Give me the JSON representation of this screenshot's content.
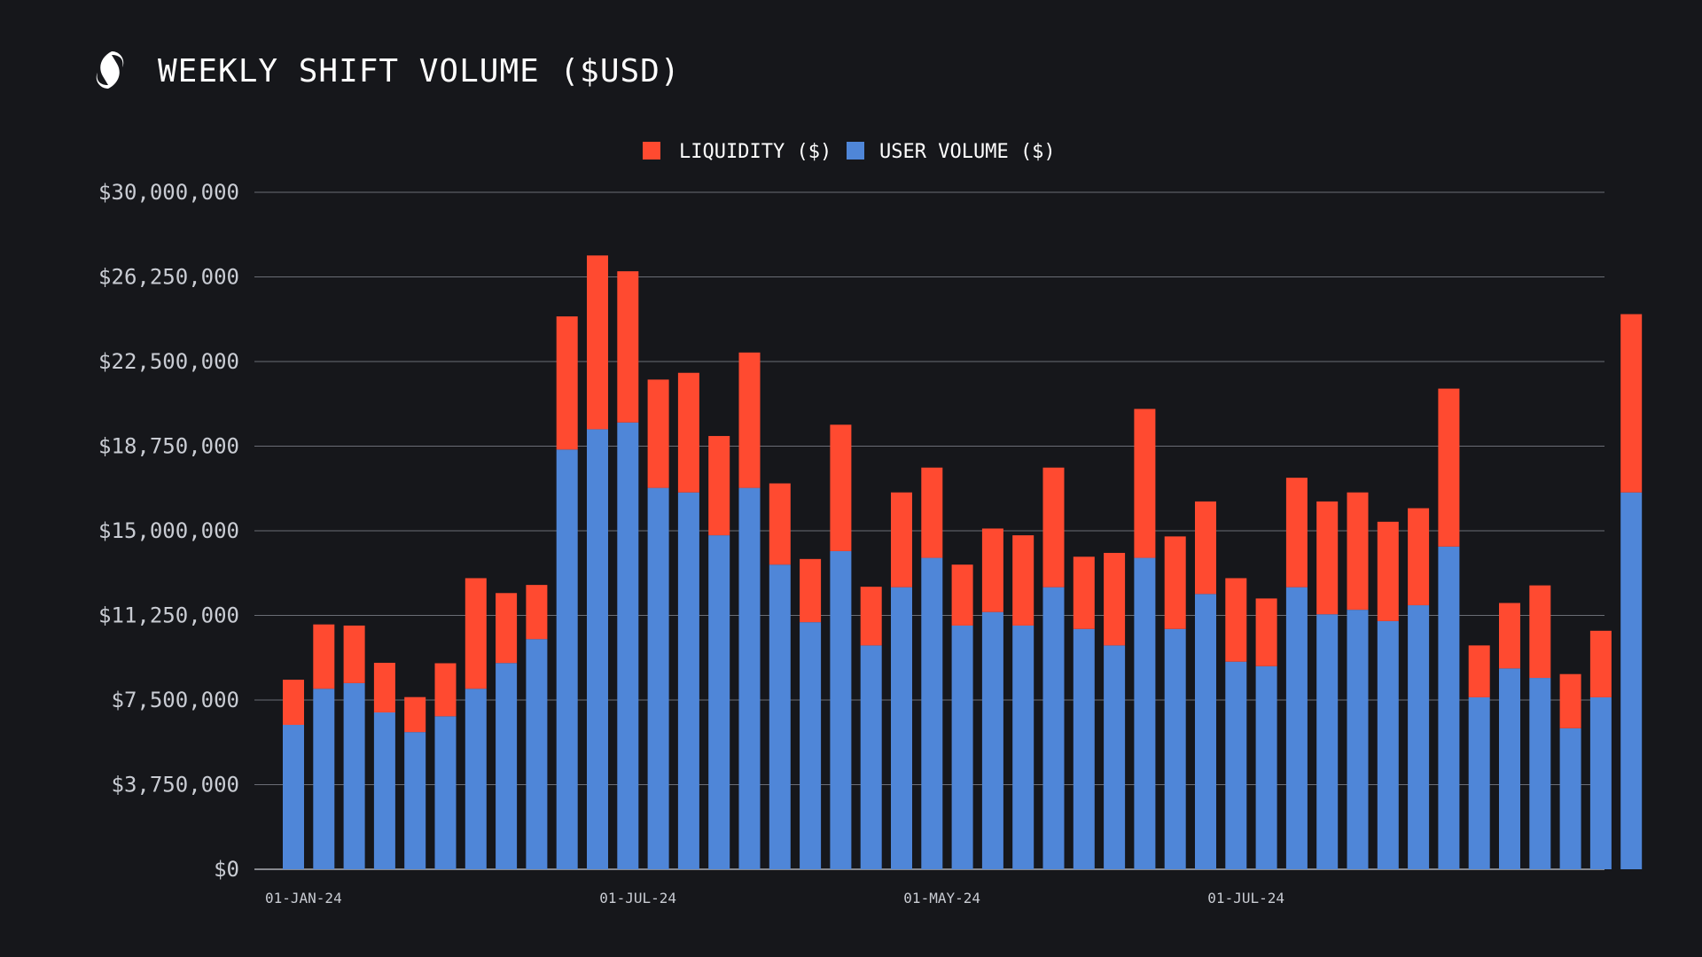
{
  "header": {
    "logo_icon": "shapeshift-fox-icon",
    "title": "WEEKLY SHIFT VOLUME ($USD)"
  },
  "colors": {
    "background": "#16171b",
    "liquidity": "#ff4a30",
    "user_volume": "#4f86d8",
    "grid": "#6a6d75",
    "text": "#ffffff",
    "tick_text": "#c9ccd3"
  },
  "chart_data": {
    "type": "bar",
    "stacked": true,
    "title": "WEEKLY SHIFT VOLUME ($USD)",
    "xlabel": "",
    "ylabel": "",
    "ylim": [
      0,
      30000000
    ],
    "grid": true,
    "legend_position": "top-center",
    "y_ticks": [
      "$0",
      "$3,750,000",
      "$7,500,000",
      "$11,250,000",
      "$15,000,000",
      "$18,750,000",
      "$22,500,000",
      "$26,250,000",
      "$30,000,000"
    ],
    "y_tick_values": [
      0,
      3750000,
      7500000,
      11250000,
      15000000,
      18750000,
      22500000,
      26250000,
      30000000
    ],
    "x_tick_labels": [
      {
        "label": "01-JAN-24",
        "index": 0
      },
      {
        "label": "01-JUL-24",
        "index": 11
      },
      {
        "label": "01-MAY-24",
        "index": 21
      },
      {
        "label": "01-JUL-24",
        "index": 31
      }
    ],
    "series": [
      {
        "name": "USER VOLUME ($)",
        "color": "#4f86d8",
        "values": [
          6400000,
          8000000,
          8250000,
          6950000,
          6080000,
          6780000,
          8000000,
          9140000,
          10200000,
          18600000,
          19500000,
          19800000,
          16900000,
          16700000,
          14800000,
          16900000,
          13500000,
          10950000,
          14100000,
          9920000,
          12500000,
          13800000,
          10800000,
          11400000,
          10800000,
          12500000,
          10650000,
          9920000,
          13800000,
          10650000,
          12200000,
          9200000,
          9000000,
          12500000,
          11300000,
          11500000,
          11000000,
          11700000,
          14300000,
          7620000,
          8900000,
          8480000,
          6250000,
          7620000,
          16700000
        ]
      },
      {
        "name": "LIQUIDITY ($)",
        "color": "#ff4a30",
        "values": [
          2000000,
          2850000,
          2550000,
          2200000,
          1550000,
          2350000,
          4900000,
          3100000,
          2400000,
          5900000,
          7700000,
          6700000,
          4800000,
          5300000,
          4400000,
          6000000,
          3600000,
          2800000,
          5600000,
          2600000,
          4200000,
          4000000,
          2700000,
          3700000,
          4000000,
          5300000,
          3200000,
          4100000,
          6600000,
          4100000,
          4100000,
          3700000,
          3000000,
          4850000,
          5000000,
          5200000,
          4400000,
          4300000,
          7000000,
          2300000,
          2900000,
          4100000,
          2400000,
          2950000,
          7900000
        ]
      }
    ]
  }
}
